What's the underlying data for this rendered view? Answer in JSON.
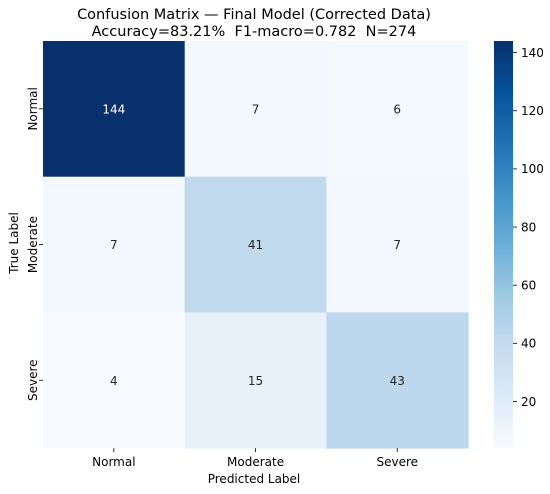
{
  "chart_data": {
    "type": "heatmap",
    "title": "Confusion Matrix — Final Model (Corrected Data)",
    "subtitle": "Accuracy=83.21%  F1-macro=0.782  N=274",
    "xlabel": "Predicted Label",
    "ylabel": "True Label",
    "x_categories": [
      "Normal",
      "Moderate",
      "Severe"
    ],
    "y_categories": [
      "Normal",
      "Moderate",
      "Severe"
    ],
    "values": [
      [
        144,
        7,
        6
      ],
      [
        7,
        41,
        7
      ],
      [
        4,
        15,
        43
      ]
    ],
    "colormap": "Blues",
    "colorbar": {
      "vmin": 4,
      "vmax": 144,
      "ticks": [
        20,
        40,
        60,
        80,
        100,
        120,
        140
      ]
    },
    "grid": false
  }
}
